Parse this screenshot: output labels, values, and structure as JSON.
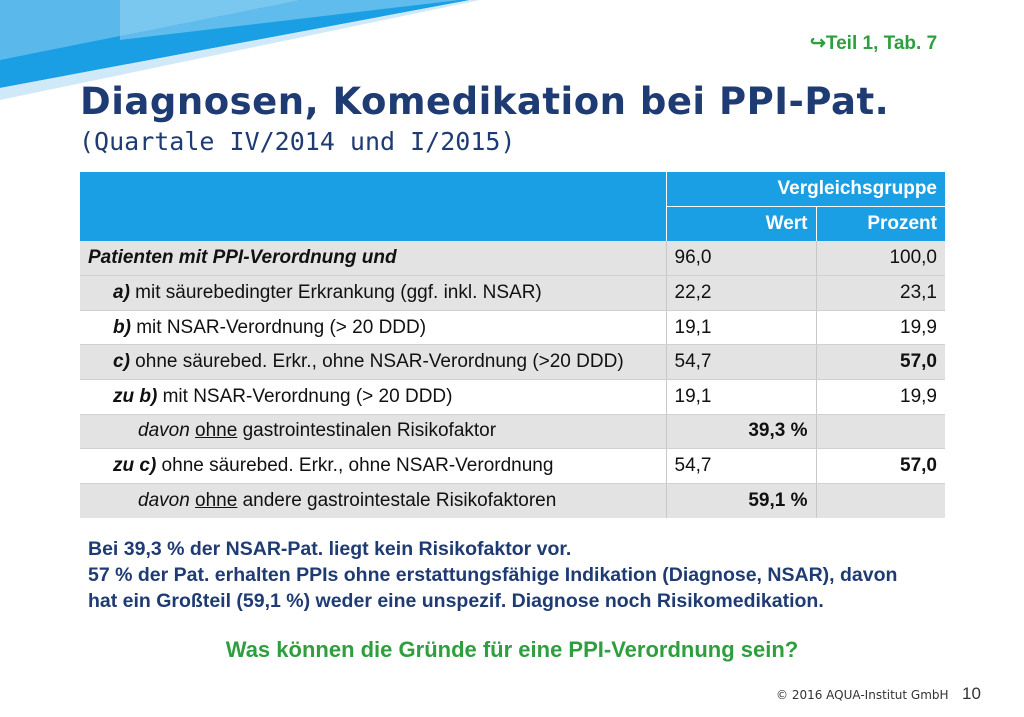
{
  "reference": "↪Teil 1, Tab. 7",
  "title": "Diagnosen, Komedikation bei PPI-Pat.",
  "subtitle": "(Quartale IV/2014 und I/2015)",
  "table": {
    "group_header": "Vergleichsgruppe",
    "col_wert": "Wert",
    "col_prozent": "Prozent",
    "rows": [
      {
        "label": "Patienten mit PPI-Verordnung und",
        "wert": "96,0",
        "prozent": "100,0"
      },
      {
        "prefix": "a)",
        "label": " mit säurebedingter Erkrankung (ggf. inkl. NSAR)",
        "wert": "22,2",
        "prozent": "23,1"
      },
      {
        "prefix": "b)",
        "label": " mit NSAR-Verordnung (> 20 DDD)",
        "wert": "19,1",
        "prozent": "19,9"
      },
      {
        "prefix": "c)",
        "label": " ohne säurebed. Erkr., ohne NSAR-Verordnung (>20 DDD)",
        "wert": "54,7",
        "prozent": "57,0"
      },
      {
        "prefix": "zu b)",
        "label": " mit NSAR-Verordnung (> 20 DDD)",
        "wert": "19,1",
        "prozent": "19,9"
      },
      {
        "pre": "davon ",
        "under": "ohne",
        "label": " gastrointestinalen Risikofaktor",
        "wert": "39,3 %",
        "prozent": ""
      },
      {
        "prefix": "zu c)",
        "label": " ohne säurebed. Erkr., ohne NSAR-Verordnung",
        "wert": "54,7",
        "prozent": "57,0"
      },
      {
        "pre": "davon ",
        "under": "ohne",
        "label": " andere gastrointestale Risikofaktoren",
        "wert": "59,1 %",
        "prozent": ""
      }
    ]
  },
  "conclusion": [
    "Bei 39,3 % der NSAR-Pat. liegt kein Risikofaktor vor.",
    "57 % der Pat. erhalten PPIs ohne erstattungsfähige Indikation (Diagnose, NSAR), davon",
    "hat ein Großteil (59,1 %) weder eine unspezif. Diagnose noch Risikomedikation."
  ],
  "question": "Was können die Gründe für eine PPI-Verordnung sein?",
  "footer": "© 2016 AQUA-Institut GmbH",
  "page_number": "10",
  "colors": {
    "header_blue": "#1a9ee4",
    "title_navy": "#1f3b73",
    "accent_green": "#2e9e3e",
    "row_gray": "#e3e3e3"
  }
}
